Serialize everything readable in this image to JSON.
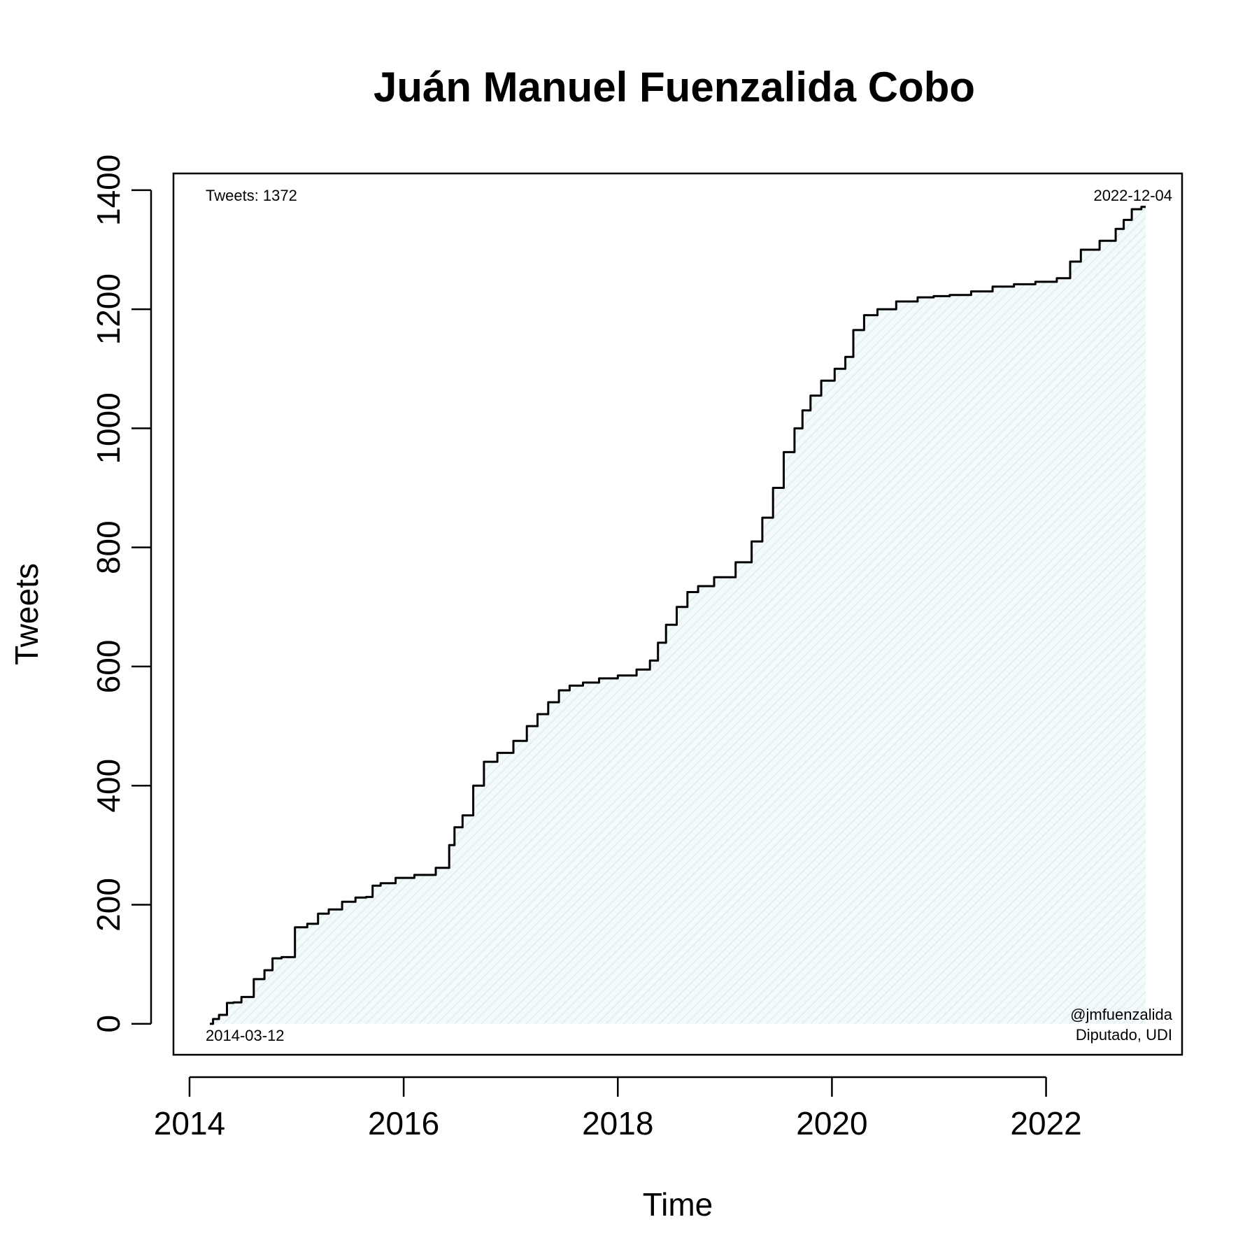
{
  "chart_data": {
    "type": "area",
    "title": "Juán Manuel Fuenzalida Cobo",
    "xlabel": "Time",
    "ylabel": "Tweets",
    "x_ticks": [
      "2014",
      "2016",
      "2018",
      "2020",
      "2022"
    ],
    "y_ticks": [
      "0",
      "200",
      "400",
      "600",
      "800",
      "1000",
      "1200",
      "1400"
    ],
    "xlim": [
      2013.85,
      2023.27
    ],
    "ylim": [
      -52,
      1428
    ],
    "grid": false,
    "annotations": {
      "total": "Tweets: 1372",
      "start_date": "2014-03-12",
      "end_date": "2022-12-04",
      "handle": "@jmfuenzalida",
      "role": "Diputado, UDI"
    },
    "fill_color": "#e6f3f5",
    "line_color": "#000000",
    "series": [
      {
        "x": [
          2014.19,
          2014.25,
          2014.3,
          2014.4,
          2014.42,
          2014.55,
          2014.65,
          2014.75,
          2014.8,
          2014.92,
          2015.05,
          2015.15,
          2015.25,
          2015.35,
          2015.5,
          2015.6,
          2015.7,
          2015.72,
          2015.85,
          2016.0,
          2016.2,
          2016.4,
          2016.45,
          2016.5,
          2016.6,
          2016.7,
          2016.8,
          2016.95,
          2017.1,
          2017.2,
          2017.3,
          2017.4,
          2017.5,
          2017.6,
          2017.75,
          2017.9,
          2018.1,
          2018.25,
          2018.35,
          2018.4,
          2018.5,
          2018.6,
          2018.7,
          2018.8,
          2019.0,
          2019.2,
          2019.3,
          2019.4,
          2019.5,
          2019.6,
          2019.7,
          2019.75,
          2019.85,
          2019.95,
          2020.1,
          2020.15,
          2020.25,
          2020.35,
          2020.5,
          2020.7,
          2020.9,
          2021.0,
          2021.2,
          2021.4,
          2021.6,
          2021.8,
          2022.0,
          2022.2,
          2022.25,
          2022.4,
          2022.6,
          2022.7,
          2022.75,
          2022.85,
          2022.93
        ],
        "y": [
          0,
          8,
          15,
          35,
          36,
          45,
          75,
          90,
          110,
          112,
          162,
          168,
          185,
          192,
          205,
          212,
          213,
          232,
          236,
          245,
          250,
          262,
          300,
          330,
          350,
          400,
          440,
          455,
          475,
          500,
          520,
          540,
          560,
          568,
          573,
          580,
          585,
          595,
          610,
          640,
          670,
          700,
          725,
          735,
          750,
          775,
          810,
          850,
          900,
          960,
          1000,
          1030,
          1055,
          1080,
          1100,
          1120,
          1165,
          1190,
          1200,
          1213,
          1220,
          1222,
          1224,
          1230,
          1238,
          1242,
          1246,
          1252,
          1280,
          1300,
          1315,
          1335,
          1350,
          1368,
          1372
        ]
      }
    ]
  }
}
